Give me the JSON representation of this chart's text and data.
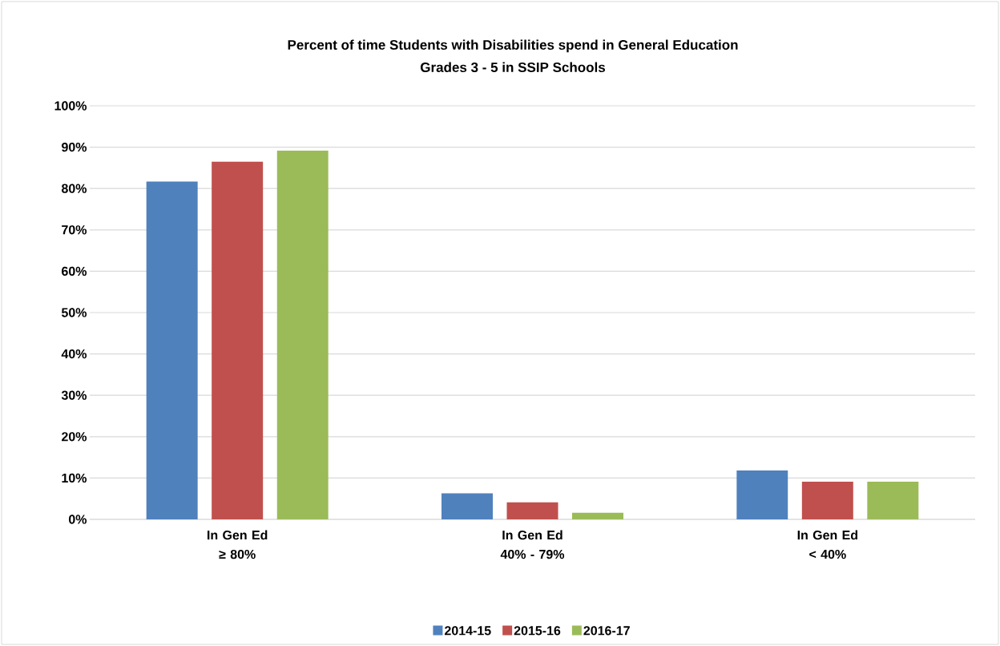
{
  "chart_data": {
    "type": "bar",
    "title": "Percent of time Students with Disabilities spend in General Education",
    "subtitle": "Grades 3 - 5 in SSIP Schools",
    "categories": [
      "In Gen Ed ≥ 80%",
      "In Gen Ed 40% - 79%",
      "In Gen Ed < 40%"
    ],
    "series": [
      {
        "name": "2014-15",
        "color": "#4f81bd",
        "values": [
          81.7,
          6.3,
          11.8
        ]
      },
      {
        "name": "2015-16",
        "color": "#c0504d",
        "values": [
          86.5,
          4.1,
          9.1
        ]
      },
      {
        "name": "2016-17",
        "color": "#9bbb59",
        "values": [
          89.2,
          1.6,
          9.1
        ]
      }
    ],
    "ylim": [
      0,
      100
    ],
    "yticks": [
      {
        "value": 0,
        "label": "0%"
      },
      {
        "value": 10,
        "label": "10%"
      },
      {
        "value": 20,
        "label": "20%"
      },
      {
        "value": 30,
        "label": "30%"
      },
      {
        "value": 40,
        "label": "40%"
      },
      {
        "value": 50,
        "label": "50%"
      },
      {
        "value": 60,
        "label": "60%"
      },
      {
        "value": 70,
        "label": "70%"
      },
      {
        "value": 80,
        "label": "80%"
      },
      {
        "value": 90,
        "label": "90%"
      },
      {
        "value": 100,
        "label": "100%"
      }
    ],
    "grid": "y",
    "legend": "bottom"
  }
}
